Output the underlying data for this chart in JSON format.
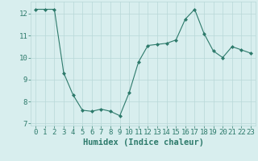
{
  "x": [
    0,
    1,
    2,
    3,
    4,
    5,
    6,
    7,
    8,
    9,
    10,
    11,
    12,
    13,
    14,
    15,
    16,
    17,
    18,
    19,
    20,
    21,
    22,
    23
  ],
  "y": [
    12.2,
    12.2,
    12.2,
    9.3,
    8.3,
    7.6,
    7.55,
    7.65,
    7.55,
    7.35,
    8.4,
    9.8,
    10.55,
    10.6,
    10.65,
    10.8,
    11.75,
    12.2,
    11.1,
    10.3,
    10.0,
    10.5,
    10.35,
    10.2
  ],
  "line_color": "#2d7a6b",
  "marker": "D",
  "marker_size": 2.0,
  "bg_color": "#d8eeee",
  "grid_color": "#b8d8d8",
  "xlabel": "Humidex (Indice chaleur)",
  "ylim": [
    6.9,
    12.55
  ],
  "xlim": [
    -0.5,
    23.5
  ],
  "yticks": [
    7,
    8,
    9,
    10,
    11,
    12
  ],
  "xticks": [
    0,
    1,
    2,
    3,
    4,
    5,
    6,
    7,
    8,
    9,
    10,
    11,
    12,
    13,
    14,
    15,
    16,
    17,
    18,
    19,
    20,
    21,
    22,
    23
  ],
  "xlabel_color": "#2d7a6b",
  "tick_color": "#2d7a6b",
  "font_size_label": 7.5,
  "font_size_tick": 6.5
}
